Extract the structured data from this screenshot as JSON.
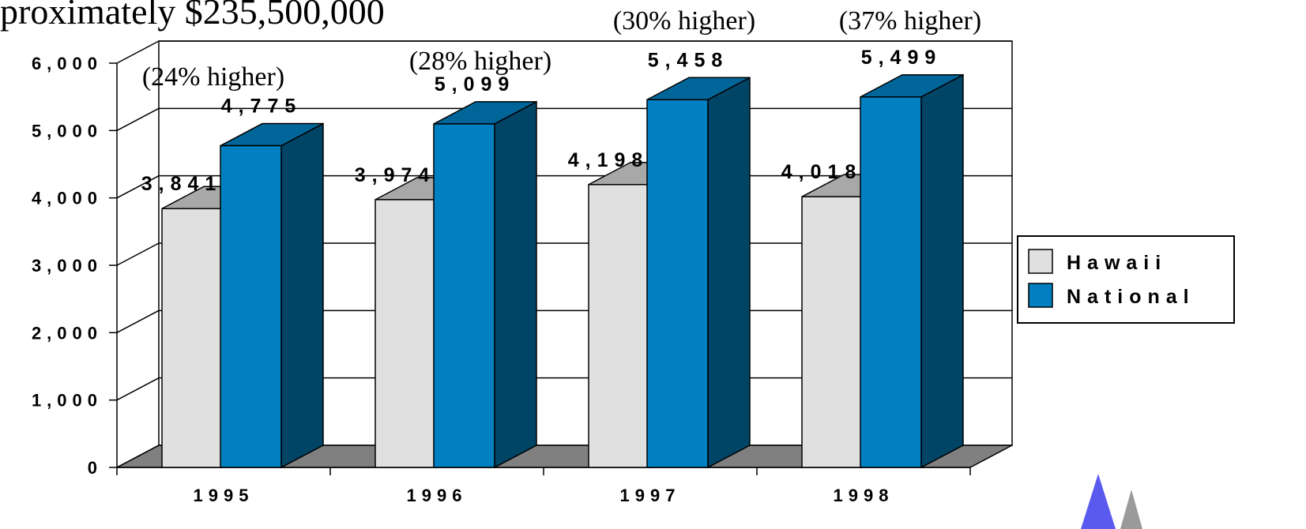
{
  "header_fragment": "proximately $235,500,000",
  "chart_data": {
    "type": "bar",
    "categories": [
      "1995",
      "1996",
      "1997",
      "1998"
    ],
    "series": [
      {
        "name": "Hawaii",
        "values": [
          3841,
          3974,
          4198,
          4018
        ]
      },
      {
        "name": "National",
        "values": [
          4775,
          5099,
          5458,
          5499
        ]
      }
    ],
    "data_labels": {
      "Hawaii": [
        "3,841",
        "3,974",
        "4,198",
        "4,018"
      ],
      "National": [
        "4,775",
        "5,099",
        "5,458",
        "5,499"
      ]
    },
    "annotations": [
      "(24% higher)",
      "(28% higher)",
      "(30% higher)",
      "(37% higher)"
    ],
    "y_ticks": [
      "0",
      "1,000",
      "2,000",
      "3,000",
      "4,000",
      "5,000",
      "6,000"
    ],
    "ylim": [
      0,
      6000
    ],
    "grid": true,
    "three_d": true,
    "legend_position": "right",
    "colors": {
      "Hawaii": "#e0e0e0",
      "National": "#0080c0",
      "floor": "#808080",
      "hawaii_top": "#a8a8a8",
      "hawaii_side": "#c4c4c4",
      "national_top": "#006699",
      "national_side": "#004466",
      "corner_logo_a": "#5a5aee",
      "corner_logo_b": "#9a9a9a"
    }
  }
}
